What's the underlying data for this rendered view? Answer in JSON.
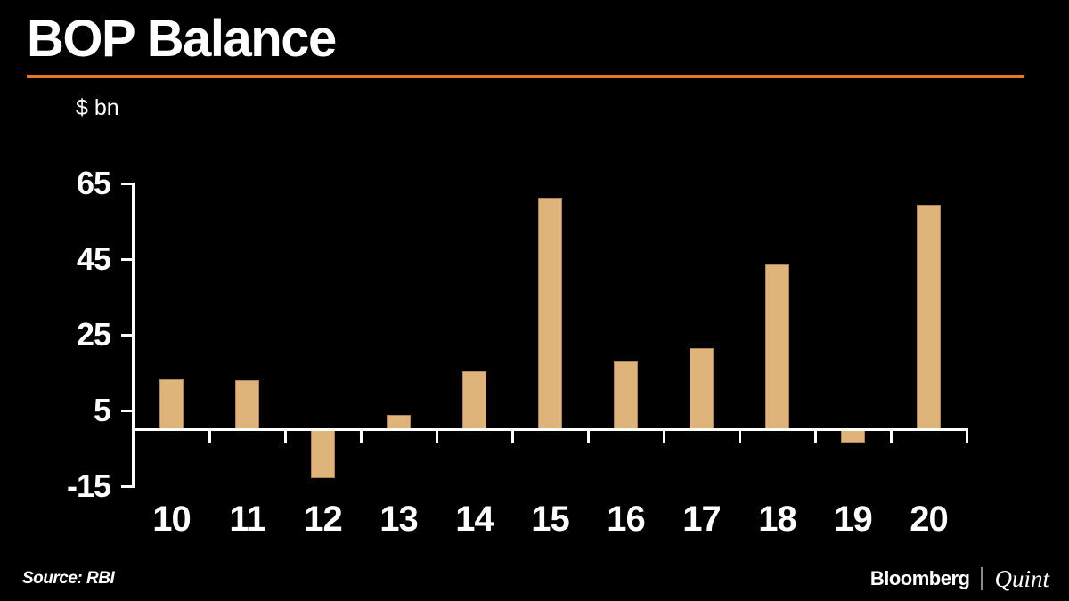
{
  "title": "BOP Balance",
  "unit_label": "$ bn",
  "source": "Source: RBI",
  "branding": {
    "bloomberg": "Bloomberg",
    "quint": "Quint"
  },
  "colors": {
    "background": "#000000",
    "bar": "#deb47a",
    "accent_rule": "#e8781e",
    "axis_and_text": "#ffffff",
    "brand_separator": "#8a8a8a"
  },
  "chart_data": {
    "type": "bar",
    "title": "BOP Balance",
    "xlabel": "",
    "ylabel": "$ bn",
    "categories": [
      "10",
      "11",
      "12",
      "13",
      "14",
      "15",
      "16",
      "17",
      "18",
      "19",
      "20"
    ],
    "values": [
      13.4,
      13.1,
      -12.8,
      3.8,
      15.5,
      61.4,
      17.9,
      21.6,
      43.6,
      -3.3,
      59.5
    ],
    "ylim": [
      -15,
      65
    ],
    "yticks": [
      65,
      45,
      25,
      5,
      -15
    ],
    "grid": false,
    "legend_position": "none",
    "bar_color": "#deb47a"
  }
}
